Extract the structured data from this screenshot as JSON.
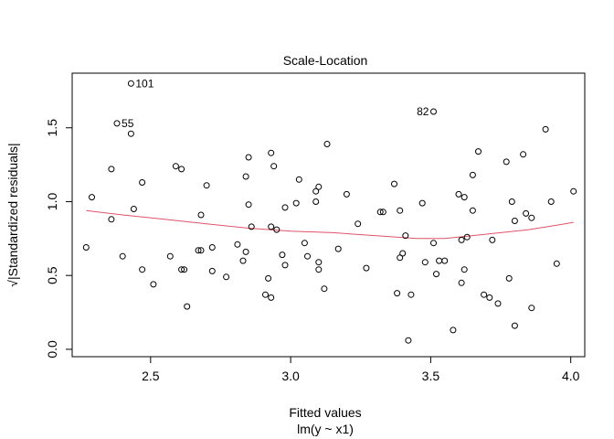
{
  "chart_data": {
    "type": "scatter",
    "title": "Scale-Location",
    "xlabel": "Fitted values",
    "subtitle": "lm(y ~ x1)",
    "ylabel": "√|Standardized residuals|",
    "xlim": [
      2.22,
      4.05
    ],
    "ylim": [
      -0.05,
      1.87
    ],
    "x_ticks": [
      2.5,
      3.0,
      3.5,
      4.0
    ],
    "x_tick_labels": [
      "2.5",
      "3.0",
      "3.5",
      "4.0"
    ],
    "y_ticks": [
      0.0,
      0.5,
      1.0,
      1.5
    ],
    "y_tick_labels": [
      "0.0",
      "0.5",
      "1.0",
      "1.5"
    ],
    "point_style": "open-circle",
    "point_color": "#000000",
    "smooth_color": "#df536b",
    "points": [
      [
        2.27,
        0.69
      ],
      [
        2.29,
        1.03
      ],
      [
        2.36,
        0.88
      ],
      [
        2.36,
        1.22
      ],
      [
        2.38,
        1.53
      ],
      [
        2.4,
        0.63
      ],
      [
        2.43,
        1.8
      ],
      [
        2.43,
        1.46
      ],
      [
        2.44,
        0.95
      ],
      [
        2.47,
        1.13
      ],
      [
        2.47,
        0.54
      ],
      [
        2.51,
        0.44
      ],
      [
        2.57,
        0.63
      ],
      [
        2.59,
        1.24
      ],
      [
        2.61,
        1.22
      ],
      [
        2.61,
        0.54
      ],
      [
        2.62,
        0.54
      ],
      [
        2.63,
        0.29
      ],
      [
        2.67,
        0.67
      ],
      [
        2.68,
        0.67
      ],
      [
        2.68,
        0.91
      ],
      [
        2.7,
        1.11
      ],
      [
        2.72,
        0.69
      ],
      [
        2.72,
        0.53
      ],
      [
        2.77,
        0.49
      ],
      [
        2.81,
        0.71
      ],
      [
        2.83,
        0.6
      ],
      [
        2.84,
        1.17
      ],
      [
        2.84,
        0.66
      ],
      [
        2.85,
        1.3
      ],
      [
        2.85,
        0.98
      ],
      [
        2.86,
        0.83
      ],
      [
        2.91,
        0.37
      ],
      [
        2.92,
        0.48
      ],
      [
        2.93,
        1.33
      ],
      [
        2.93,
        0.83
      ],
      [
        2.93,
        0.35
      ],
      [
        2.94,
        1.24
      ],
      [
        2.95,
        0.81
      ],
      [
        2.97,
        0.64
      ],
      [
        2.98,
        0.96
      ],
      [
        2.98,
        0.57
      ],
      [
        3.02,
        0.99
      ],
      [
        3.03,
        1.15
      ],
      [
        3.05,
        0.72
      ],
      [
        3.06,
        0.63
      ],
      [
        3.09,
        1.0
      ],
      [
        3.09,
        1.07
      ],
      [
        3.1,
        1.1
      ],
      [
        3.1,
        0.54
      ],
      [
        3.1,
        0.59
      ],
      [
        3.12,
        0.41
      ],
      [
        3.13,
        1.39
      ],
      [
        3.17,
        0.68
      ],
      [
        3.2,
        1.05
      ],
      [
        3.24,
        0.85
      ],
      [
        3.27,
        0.55
      ],
      [
        3.32,
        0.93
      ],
      [
        3.33,
        0.93
      ],
      [
        3.37,
        1.12
      ],
      [
        3.38,
        0.38
      ],
      [
        3.39,
        0.62
      ],
      [
        3.39,
        0.94
      ],
      [
        3.4,
        0.65
      ],
      [
        3.41,
        0.77
      ],
      [
        3.42,
        0.06
      ],
      [
        3.43,
        0.37
      ],
      [
        3.47,
        0.99
      ],
      [
        3.48,
        0.59
      ],
      [
        3.51,
        1.61
      ],
      [
        3.51,
        0.72
      ],
      [
        3.52,
        0.51
      ],
      [
        3.53,
        0.6
      ],
      [
        3.55,
        0.6
      ],
      [
        3.58,
        0.13
      ],
      [
        3.6,
        1.05
      ],
      [
        3.61,
        0.74
      ],
      [
        3.61,
        0.45
      ],
      [
        3.62,
        0.54
      ],
      [
        3.62,
        1.03
      ],
      [
        3.63,
        0.76
      ],
      [
        3.65,
        0.94
      ],
      [
        3.65,
        1.18
      ],
      [
        3.67,
        1.34
      ],
      [
        3.69,
        0.37
      ],
      [
        3.71,
        0.35
      ],
      [
        3.72,
        0.74
      ],
      [
        3.74,
        0.31
      ],
      [
        3.77,
        1.27
      ],
      [
        3.78,
        0.48
      ],
      [
        3.79,
        1.0
      ],
      [
        3.8,
        0.87
      ],
      [
        3.8,
        0.16
      ],
      [
        3.83,
        1.32
      ],
      [
        3.84,
        0.92
      ],
      [
        3.86,
        0.89
      ],
      [
        3.86,
        0.28
      ],
      [
        3.91,
        1.49
      ],
      [
        3.93,
        1.0
      ],
      [
        3.95,
        0.58
      ],
      [
        4.01,
        1.07
      ]
    ],
    "annotations": [
      {
        "label": "101",
        "x": 2.43,
        "y": 1.8,
        "side": "right"
      },
      {
        "label": "55",
        "x": 2.38,
        "y": 1.53,
        "side": "right"
      },
      {
        "label": "82",
        "x": 3.51,
        "y": 1.61,
        "side": "left"
      }
    ],
    "smooth_line": [
      [
        2.27,
        0.94
      ],
      [
        2.4,
        0.91
      ],
      [
        2.55,
        0.88
      ],
      [
        2.7,
        0.85
      ],
      [
        2.85,
        0.82
      ],
      [
        3.0,
        0.8
      ],
      [
        3.15,
        0.79
      ],
      [
        3.3,
        0.77
      ],
      [
        3.45,
        0.75
      ],
      [
        3.55,
        0.75
      ],
      [
        3.65,
        0.77
      ],
      [
        3.75,
        0.79
      ],
      [
        3.85,
        0.81
      ],
      [
        3.95,
        0.84
      ],
      [
        4.01,
        0.86
      ]
    ]
  }
}
